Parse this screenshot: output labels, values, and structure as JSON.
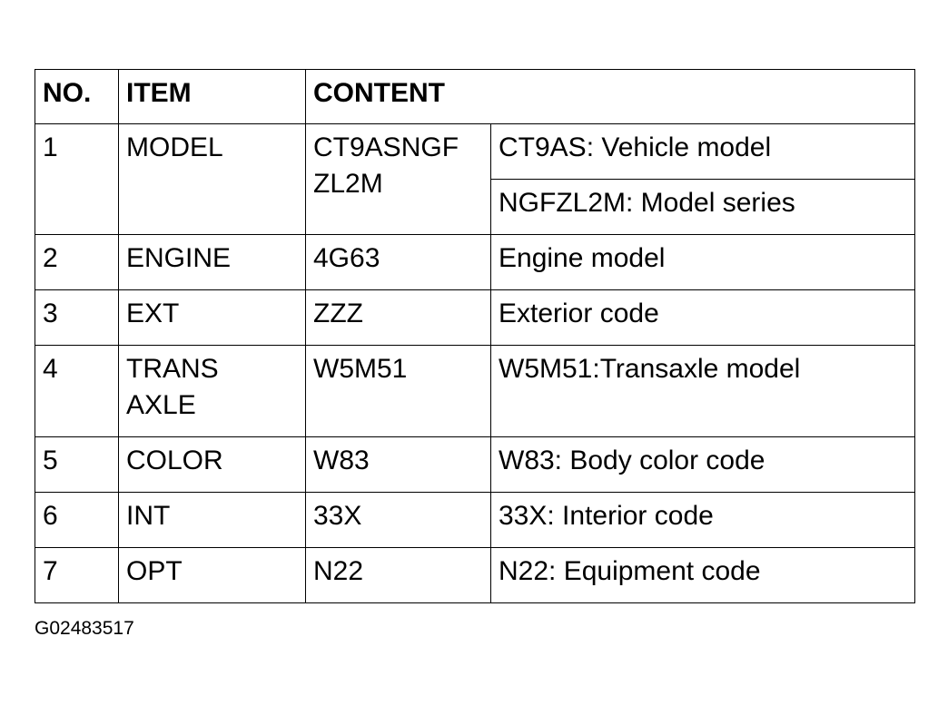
{
  "headers": [
    "NO.",
    "ITEM",
    "CONTENT"
  ],
  "rows": [
    {
      "no": "1",
      "item": "MODEL",
      "code": "CT9ASNGF\nZL2M",
      "code_lines": [
        "CT9ASNGF",
        "ZL2M"
      ],
      "desc": [
        "CT9AS: Vehicle model",
        "NGFZL2M: Model series"
      ]
    },
    {
      "no": "2",
      "item": "ENGINE",
      "code": "4G63",
      "desc": "Engine model"
    },
    {
      "no": "3",
      "item": "EXT",
      "code": "ZZZ",
      "desc": "Exterior code"
    },
    {
      "no": "4",
      "item_lines": [
        "TRANS",
        "AXLE"
      ],
      "code": "W5M51",
      "desc": "W5M51:Transaxle model"
    },
    {
      "no": "5",
      "item": "COLOR",
      "code": "W83",
      "desc": "W83: Body color code"
    },
    {
      "no": "6",
      "item": "INT",
      "code": "33X",
      "desc": "33X: Interior code"
    },
    {
      "no": "7",
      "item": "OPT",
      "code": "N22",
      "desc": "N22: Equipment code"
    }
  ],
  "caption": "G02483517"
}
